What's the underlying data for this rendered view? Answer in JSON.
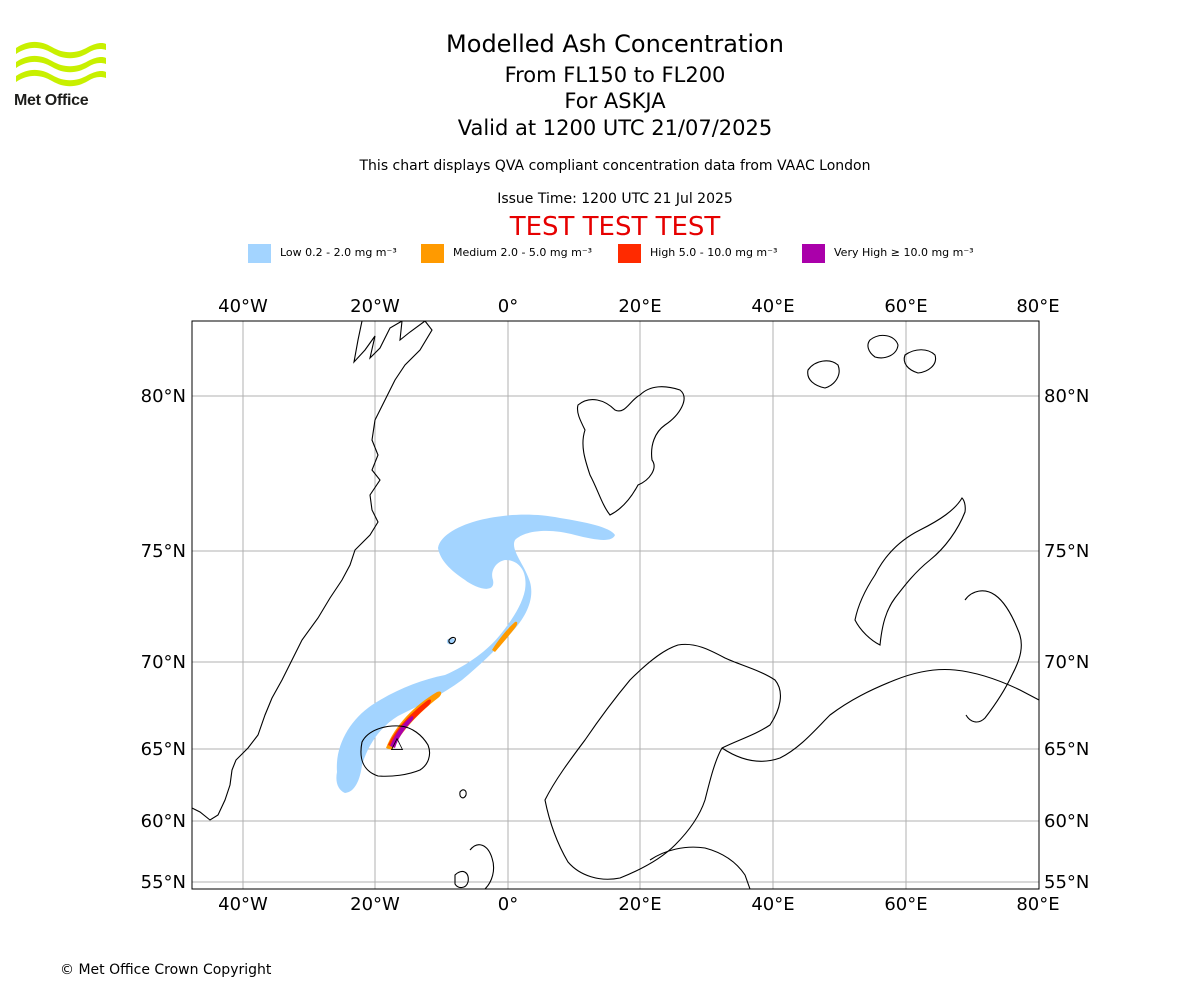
{
  "header": {
    "title": "Modelled Ash Concentration",
    "levels": "From FL150 to FL200",
    "volcano": "For ASKJA",
    "valid": "Valid at 1200 UTC 21/07/2025",
    "subtitle": "This chart displays QVA compliant concentration data from VAAC London",
    "issue": "Issue Time: 1200 UTC 21 Jul 2025",
    "test_banner": "TEST TEST TEST"
  },
  "logo": {
    "text": "Met Office",
    "color": "#c8f000"
  },
  "legend": [
    {
      "label": "Low 0.2 - 2.0 mg m⁻³",
      "color": "#a3d4ff"
    },
    {
      "label": "Medium 2.0 - 5.0 mg m⁻³",
      "color": "#ff9a00"
    },
    {
      "label": "High 5.0 - 10.0 mg m⁻³",
      "color": "#ff2a00"
    },
    {
      "label": "Very High ≥ 10.0 mg m⁻³",
      "color": "#aa00aa"
    }
  ],
  "map": {
    "lon_ticks": [
      "40°W",
      "20°W",
      "0°",
      "20°E",
      "40°E",
      "60°E",
      "80°E"
    ],
    "lat_ticks": [
      "80°N",
      "75°N",
      "70°N",
      "65°N",
      "60°N",
      "55°N"
    ],
    "gridline_color": "#b0b0b0",
    "coastline_color": "#000000"
  },
  "footer": {
    "copyright": "© Met Office Crown Copyright"
  }
}
